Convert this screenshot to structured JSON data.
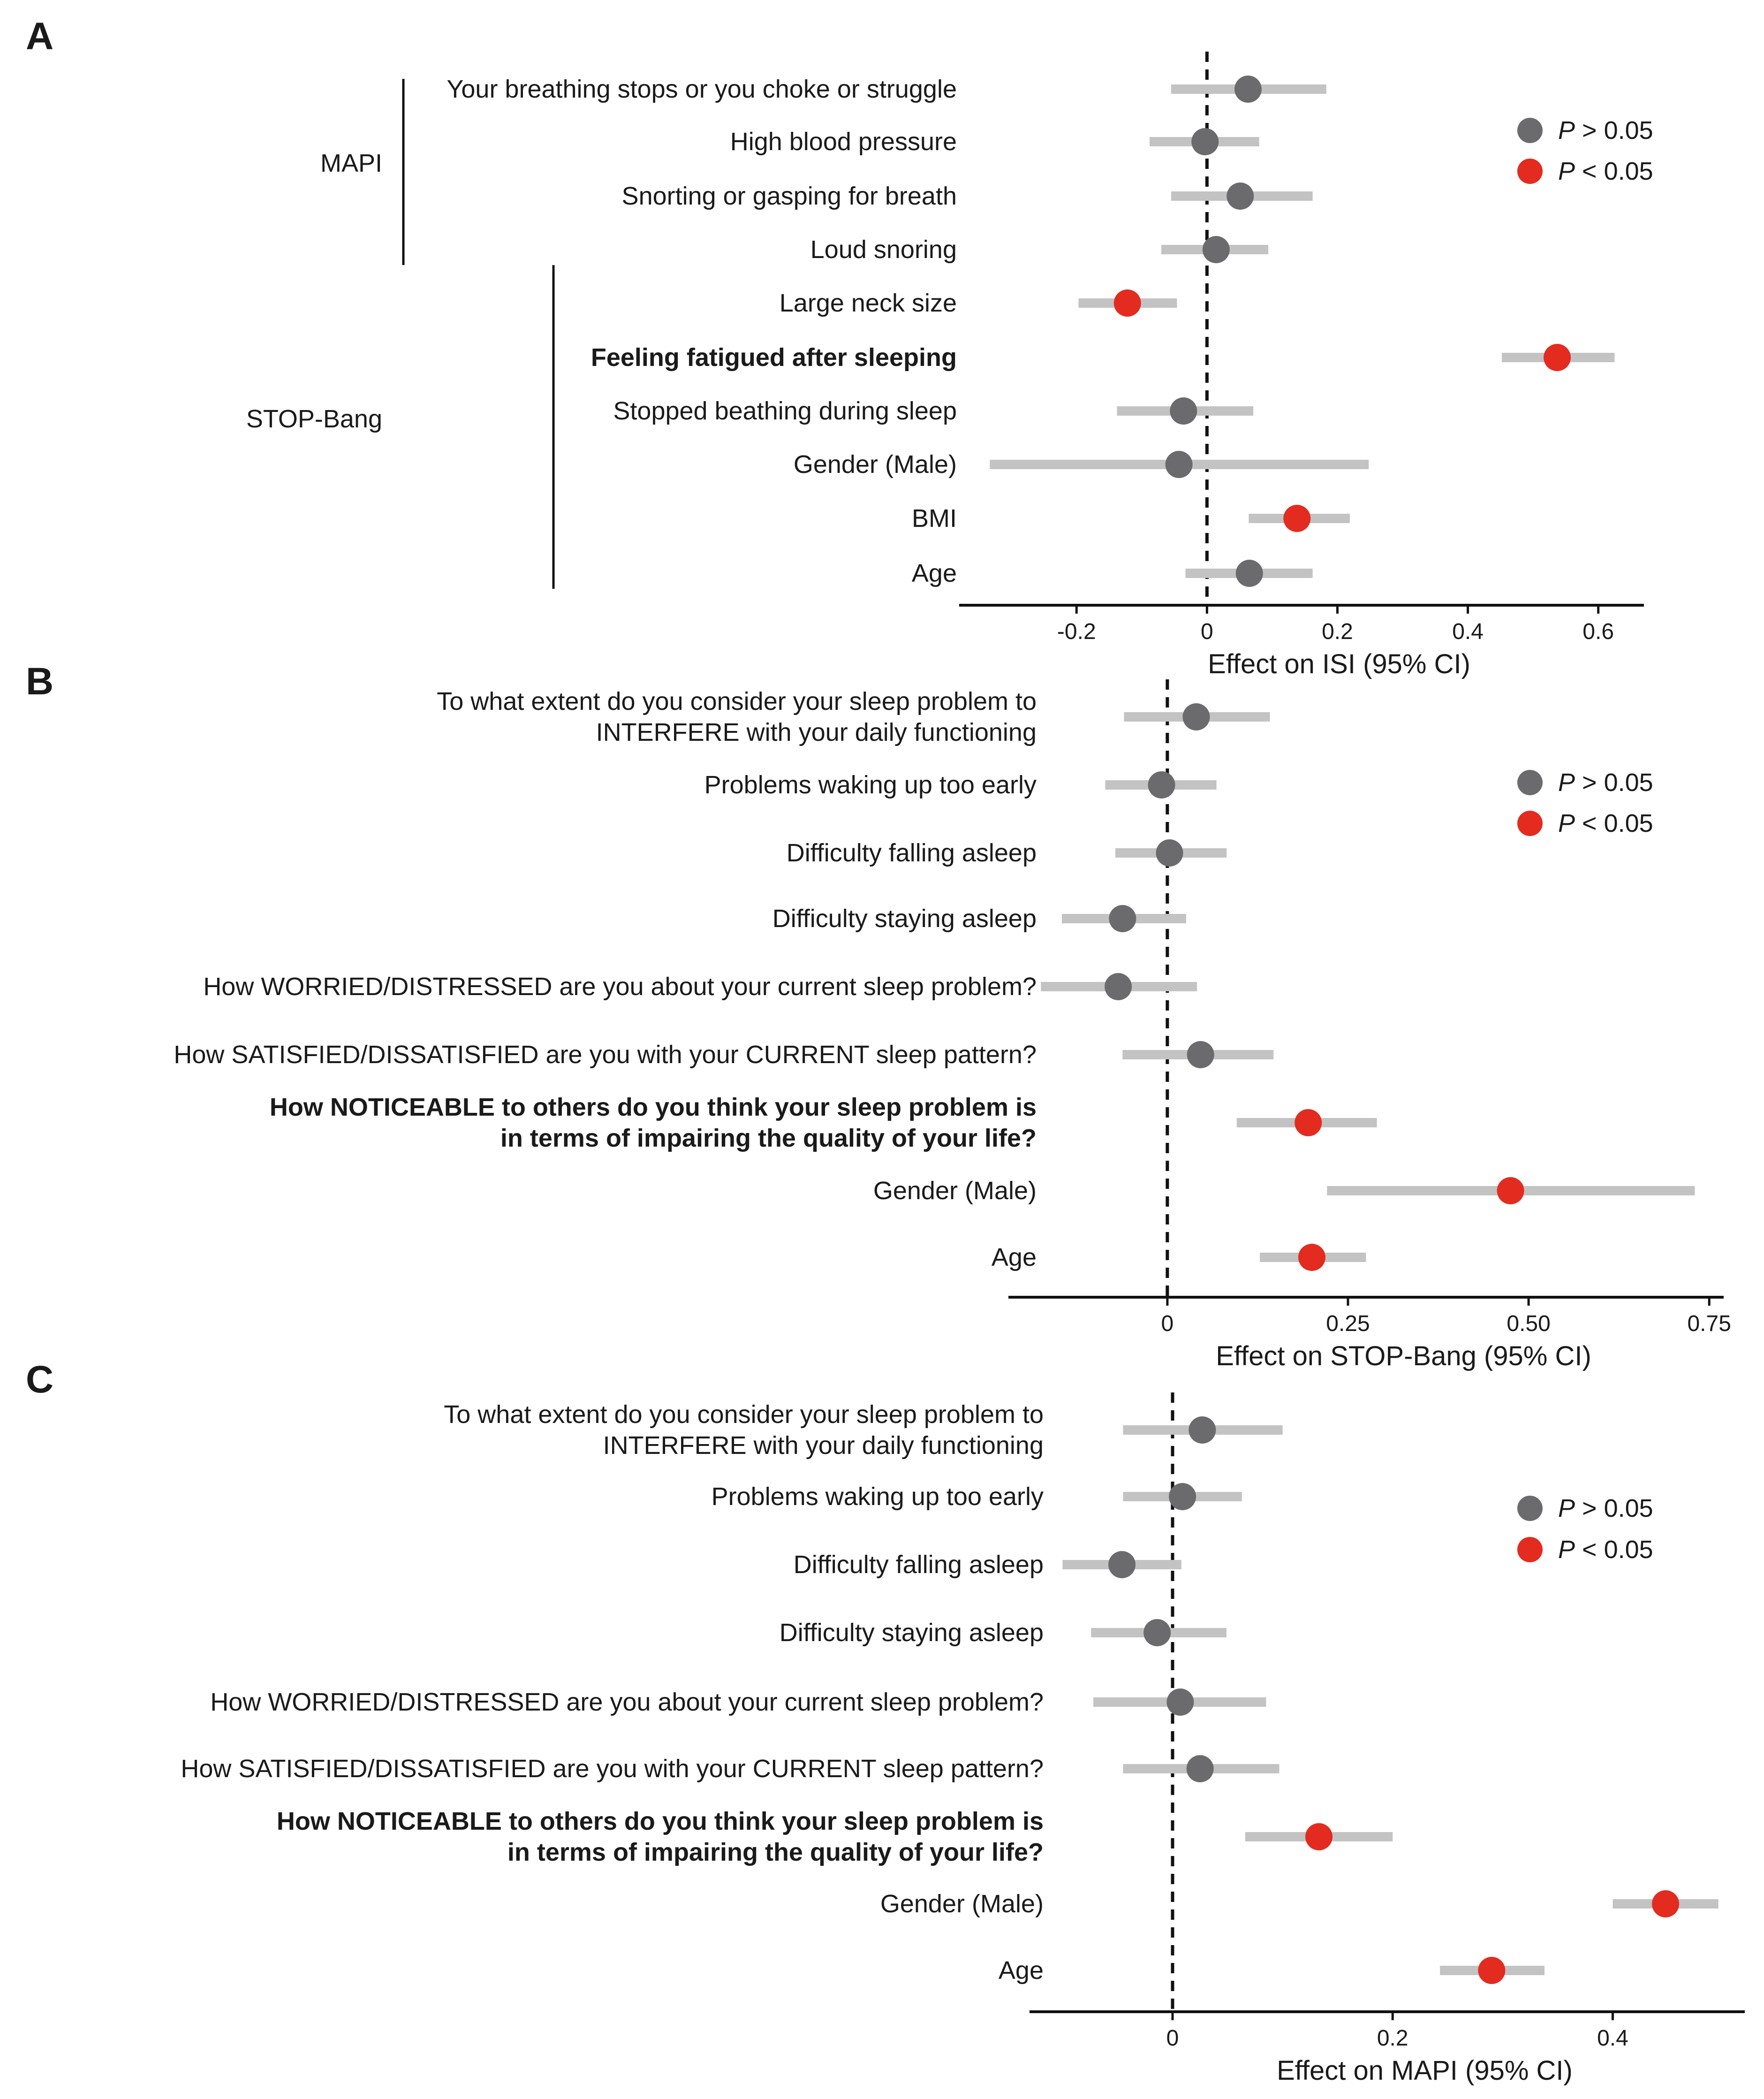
{
  "colors": {
    "nonsig": "#6b6b6d",
    "sig": "#e32b1f",
    "ci": "#c3c3c3",
    "axis": "#111111"
  },
  "legend": {
    "p_label": "P",
    "nonsig_label": " > 0.05",
    "sig_label": " < 0.05"
  },
  "chart_data": [
    {
      "type": "forest",
      "panel": "A",
      "xlabel": "Effect on ISI (95% CI)",
      "xlim": [
        -0.38,
        0.67
      ],
      "ticks": [
        -0.2,
        0,
        0.2,
        0.4,
        0.6
      ],
      "tick_labels": [
        "-0.2",
        "0",
        "0.2",
        "0.4",
        "0.6"
      ],
      "groups": [
        {
          "name": "MAPI",
          "rows": [
            0,
            3
          ]
        },
        {
          "name": "STOP-Bang",
          "rows": [
            4,
            9
          ]
        }
      ],
      "rows": [
        {
          "label": [
            "Your breathing stops or you choke or struggle"
          ],
          "estimate": 0.063,
          "low": -0.055,
          "high": 0.183,
          "significant": false,
          "bold": false
        },
        {
          "label": [
            "High blood pressure"
          ],
          "estimate": -0.003,
          "low": -0.088,
          "high": 0.08,
          "significant": false,
          "bold": false
        },
        {
          "label": [
            "Snorting or gasping for breath"
          ],
          "estimate": 0.051,
          "low": -0.055,
          "high": 0.162,
          "significant": false,
          "bold": false
        },
        {
          "label": [
            "Loud snoring"
          ],
          "estimate": 0.014,
          "low": -0.07,
          "high": 0.094,
          "significant": false,
          "bold": false
        },
        {
          "label": [
            "Large neck size"
          ],
          "estimate": -0.122,
          "low": -0.197,
          "high": -0.046,
          "significant": true,
          "bold": false
        },
        {
          "label": [
            "Feeling fatigued after sleeping"
          ],
          "estimate": 0.537,
          "low": 0.452,
          "high": 0.625,
          "significant": true,
          "bold": true
        },
        {
          "label": [
            "Stopped beathing during sleep"
          ],
          "estimate": -0.036,
          "low": -0.138,
          "high": 0.071,
          "significant": false,
          "bold": false
        },
        {
          "label": [
            "Gender (Male)"
          ],
          "estimate": -0.043,
          "low": -0.333,
          "high": 0.248,
          "significant": false,
          "bold": false
        },
        {
          "label": [
            "BMI"
          ],
          "estimate": 0.138,
          "low": 0.064,
          "high": 0.219,
          "significant": true,
          "bold": false
        },
        {
          "label": [
            "Age"
          ],
          "estimate": 0.065,
          "low": -0.033,
          "high": 0.162,
          "significant": false,
          "bold": false
        }
      ]
    },
    {
      "type": "forest",
      "panel": "B",
      "xlabel": "Effect on STOP-Bang (95% CI)",
      "xlim": [
        -0.22,
        0.77
      ],
      "ticks": [
        0,
        0.25,
        0.5,
        0.75
      ],
      "tick_labels": [
        "0",
        "0.25",
        "0.50",
        "0.75"
      ],
      "groups": [],
      "rows": [
        {
          "label": [
            "To what extent do you consider your sleep problem to",
            "INTERFERE with your daily functioning"
          ],
          "estimate": 0.04,
          "low": -0.06,
          "high": 0.142,
          "significant": false,
          "bold": false
        },
        {
          "label": [
            "Problems waking up too early"
          ],
          "estimate": -0.008,
          "low": -0.086,
          "high": 0.068,
          "significant": false,
          "bold": false
        },
        {
          "label": [
            "Difficulty falling asleep"
          ],
          "estimate": 0.003,
          "low": -0.072,
          "high": 0.082,
          "significant": false,
          "bold": false
        },
        {
          "label": [
            "Difficulty staying asleep"
          ],
          "estimate": -0.062,
          "low": -0.146,
          "high": 0.026,
          "significant": false,
          "bold": false
        },
        {
          "label": [
            "How WORRIED/DISTRESSED are you about your current sleep problem?"
          ],
          "estimate": -0.068,
          "low": -0.175,
          "high": 0.041,
          "significant": false,
          "bold": false
        },
        {
          "label": [
            "How SATISFIED/DISSATISFIED are you with your CURRENT sleep pattern?"
          ],
          "estimate": 0.046,
          "low": -0.062,
          "high": 0.147,
          "significant": false,
          "bold": false
        },
        {
          "label": [
            "How NOTICEABLE to others do you think your sleep problem is",
            "in terms of impairing the quality of your life?"
          ],
          "estimate": 0.195,
          "low": 0.096,
          "high": 0.29,
          "significant": true,
          "bold": true
        },
        {
          "label": [
            "Gender (Male)"
          ],
          "estimate": 0.475,
          "low": 0.221,
          "high": 0.73,
          "significant": true,
          "bold": false
        },
        {
          "label": [
            "Age"
          ],
          "estimate": 0.2,
          "low": 0.128,
          "high": 0.275,
          "significant": true,
          "bold": false
        }
      ]
    },
    {
      "type": "forest",
      "panel": "C",
      "xlabel": "Effect on MAPI (95% CI)",
      "xlim": [
        -0.13,
        0.52
      ],
      "ticks": [
        0,
        0.2,
        0.4
      ],
      "tick_labels": [
        "0",
        "0.2",
        "0.4"
      ],
      "groups": [],
      "rows": [
        {
          "label": [
            "To what extent do you consider your sleep problem to",
            "INTERFERE with your daily functioning"
          ],
          "estimate": 0.027,
          "low": -0.045,
          "high": 0.1,
          "significant": false,
          "bold": false
        },
        {
          "label": [
            "Problems waking up too early"
          ],
          "estimate": 0.009,
          "low": -0.045,
          "high": 0.063,
          "significant": false,
          "bold": false
        },
        {
          "label": [
            "Difficulty falling asleep"
          ],
          "estimate": -0.046,
          "low": -0.1,
          "high": 0.008,
          "significant": false,
          "bold": false
        },
        {
          "label": [
            "Difficulty staying asleep"
          ],
          "estimate": -0.014,
          "low": -0.074,
          "high": 0.049,
          "significant": false,
          "bold": false
        },
        {
          "label": [
            "How WORRIED/DISTRESSED are you about your current sleep problem?"
          ],
          "estimate": 0.007,
          "low": -0.072,
          "high": 0.085,
          "significant": false,
          "bold": false
        },
        {
          "label": [
            "How SATISFIED/DISSATISFIED are you with your CURRENT sleep pattern?"
          ],
          "estimate": 0.025,
          "low": -0.045,
          "high": 0.097,
          "significant": false,
          "bold": false
        },
        {
          "label": [
            "How NOTICEABLE to others do you think your sleep problem is",
            "in terms of impairing the quality of your life?"
          ],
          "estimate": 0.133,
          "low": 0.066,
          "high": 0.2,
          "significant": true,
          "bold": true
        },
        {
          "label": [
            "Gender (Male)"
          ],
          "estimate": 0.448,
          "low": 0.4,
          "high": 0.496,
          "significant": true,
          "bold": false
        },
        {
          "label": [
            "Age"
          ],
          "estimate": 0.29,
          "low": 0.243,
          "high": 0.338,
          "significant": true,
          "bold": false
        }
      ]
    }
  ]
}
